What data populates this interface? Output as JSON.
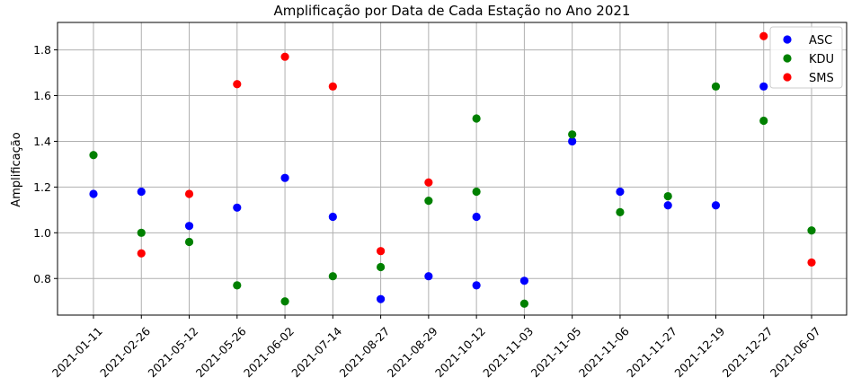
{
  "chart_data": {
    "type": "scatter",
    "title": "Amplificação por Data de Cada Estação no Ano 2021",
    "xlabel": "",
    "ylabel": "Amplificação",
    "categories": [
      "2021-01-11",
      "2021-02-26",
      "2021-05-12",
      "2021-05-26",
      "2021-06-02",
      "2021-07-14",
      "2021-08-27",
      "2021-08-29",
      "2021-10-12",
      "2021-11-03",
      "2021-11-05",
      "2021-11-06",
      "2021-11-27",
      "2021-12-19",
      "2021-12-27",
      "2021-06-07"
    ],
    "ylim": [
      0.64,
      1.92
    ],
    "yticks": [
      "0.8",
      "1.0",
      "1.2",
      "1.4",
      "1.6",
      "1.8"
    ],
    "grid": true,
    "legend_position": "top-right",
    "series": [
      {
        "name": "ASC",
        "color": "#0000ff",
        "points": [
          {
            "x": "2021-01-11",
            "y": 1.17
          },
          {
            "x": "2021-02-26",
            "y": 1.18
          },
          {
            "x": "2021-05-12",
            "y": 1.03
          },
          {
            "x": "2021-05-26",
            "y": 1.11
          },
          {
            "x": "2021-06-02",
            "y": 1.24
          },
          {
            "x": "2021-07-14",
            "y": 1.07
          },
          {
            "x": "2021-08-27",
            "y": 0.71
          },
          {
            "x": "2021-08-29",
            "y": 0.81
          },
          {
            "x": "2021-10-12",
            "y": 0.77
          },
          {
            "x": "2021-10-12",
            "y": 1.07
          },
          {
            "x": "2021-11-03",
            "y": 0.79
          },
          {
            "x": "2021-11-05",
            "y": 1.4
          },
          {
            "x": "2021-11-06",
            "y": 1.18
          },
          {
            "x": "2021-11-27",
            "y": 1.12
          },
          {
            "x": "2021-12-19",
            "y": 1.12
          },
          {
            "x": "2021-12-27",
            "y": 1.64
          }
        ]
      },
      {
        "name": "KDU",
        "color": "#008000",
        "points": [
          {
            "x": "2021-01-11",
            "y": 1.34
          },
          {
            "x": "2021-02-26",
            "y": 1.0
          },
          {
            "x": "2021-05-12",
            "y": 0.96
          },
          {
            "x": "2021-05-26",
            "y": 0.77
          },
          {
            "x": "2021-06-02",
            "y": 0.7
          },
          {
            "x": "2021-07-14",
            "y": 0.81
          },
          {
            "x": "2021-08-27",
            "y": 0.85
          },
          {
            "x": "2021-08-29",
            "y": 1.14
          },
          {
            "x": "2021-10-12",
            "y": 1.5
          },
          {
            "x": "2021-10-12",
            "y": 1.18
          },
          {
            "x": "2021-11-03",
            "y": 0.69
          },
          {
            "x": "2021-11-05",
            "y": 1.43
          },
          {
            "x": "2021-11-06",
            "y": 1.09
          },
          {
            "x": "2021-11-27",
            "y": 1.16
          },
          {
            "x": "2021-12-19",
            "y": 1.64
          },
          {
            "x": "2021-12-27",
            "y": 1.49
          },
          {
            "x": "2021-06-07",
            "y": 1.01
          }
        ]
      },
      {
        "name": "SMS",
        "color": "#ff0000",
        "points": [
          {
            "x": "2021-02-26",
            "y": 0.91
          },
          {
            "x": "2021-05-12",
            "y": 1.17
          },
          {
            "x": "2021-05-26",
            "y": 1.65
          },
          {
            "x": "2021-06-02",
            "y": 1.77
          },
          {
            "x": "2021-07-14",
            "y": 1.64
          },
          {
            "x": "2021-08-27",
            "y": 0.92
          },
          {
            "x": "2021-08-29",
            "y": 1.22
          },
          {
            "x": "2021-12-27",
            "y": 1.86
          },
          {
            "x": "2021-06-07",
            "y": 0.87
          }
        ]
      }
    ]
  }
}
